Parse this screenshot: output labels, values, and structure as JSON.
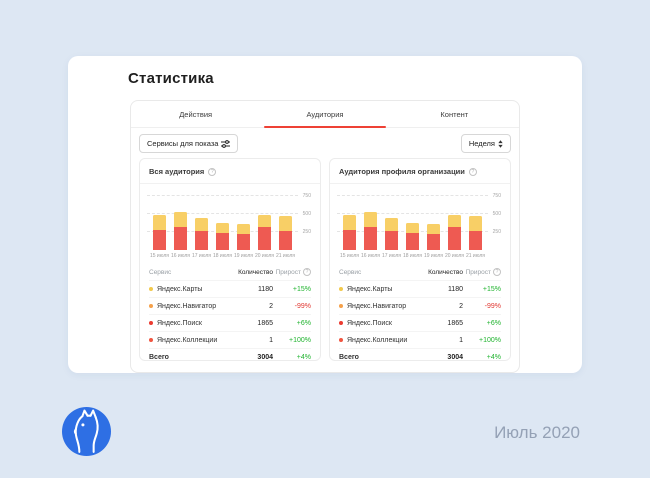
{
  "page": {
    "background": "#dde7f3",
    "footer": {
      "date": "Июль 2020"
    }
  },
  "header": {
    "title": "Статистика"
  },
  "tabs": [
    {
      "label": "Действия",
      "active": false
    },
    {
      "label": "Аудитория",
      "active": true
    },
    {
      "label": "Контент",
      "active": false
    }
  ],
  "toolbar": {
    "services_button": "Сервисы для показа",
    "period_value": "Неделя"
  },
  "icons": {
    "info": "?"
  },
  "colors": {
    "accent_red": "#ee4135",
    "bar_red": "#ee5a52",
    "bar_yellow": "#f8cf66",
    "positive_green": "#1fb32e",
    "negative_red": "#e13832",
    "logo_blue": "#2e6fe4"
  },
  "panels": [
    {
      "title": "Вся аудитория",
      "table": {
        "headers": [
          "Сервис",
          "Количество",
          "Прирост"
        ],
        "rows": [
          {
            "dot": "#f2c94c",
            "name": "Яндекс.Карты",
            "count": "1180",
            "growth": "+15%",
            "dir": "up"
          },
          {
            "dot": "#f5a14b",
            "name": "Яндекс.Навигатор",
            "count": "2",
            "growth": "-99%",
            "dir": "down"
          },
          {
            "dot": "#eb3b30",
            "name": "Яндекс.Поиск",
            "count": "1865",
            "growth": "+6%",
            "dir": "up"
          },
          {
            "dot": "#f05540",
            "name": "Яндекс.Коллекции",
            "count": "1",
            "growth": "+100%",
            "dir": "up"
          }
        ],
        "total": {
          "label": "Всего",
          "count": "3004",
          "growth": "+4%",
          "dir": "up"
        }
      }
    },
    {
      "title": "Аудитория профиля организации",
      "table": {
        "headers": [
          "Сервис",
          "Количество",
          "Прирост"
        ],
        "rows": [
          {
            "dot": "#f2c94c",
            "name": "Яндекс.Карты",
            "count": "1180",
            "growth": "+15%",
            "dir": "up"
          },
          {
            "dot": "#f5a14b",
            "name": "Яндекс.Навигатор",
            "count": "2",
            "growth": "-99%",
            "dir": "down"
          },
          {
            "dot": "#eb3b30",
            "name": "Яндекс.Поиск",
            "count": "1865",
            "growth": "+6%",
            "dir": "up"
          },
          {
            "dot": "#f05540",
            "name": "Яндекс.Коллекции",
            "count": "1",
            "growth": "+100%",
            "dir": "up"
          }
        ],
        "total": {
          "label": "Всего",
          "count": "3004",
          "growth": "+4%",
          "dir": "up"
        }
      }
    }
  ],
  "chart_data": [
    {
      "type": "bar",
      "stacked": true,
      "title": "Вся аудитория",
      "categories": [
        "15 июля",
        "16 июля",
        "17 июля",
        "18 июля",
        "19 июля",
        "20 июля",
        "21 июля"
      ],
      "series": [
        {
          "name": "red",
          "color": "#ee5a52",
          "values": [
            280,
            320,
            265,
            235,
            220,
            320,
            265
          ]
        },
        {
          "name": "yellow",
          "color": "#f8cf66",
          "values": [
            205,
            210,
            180,
            140,
            140,
            165,
            205
          ]
        }
      ],
      "ylim": [
        0,
        780
      ],
      "yticks": [
        250,
        500,
        750
      ],
      "grid": "dashed",
      "legend": "none"
    },
    {
      "type": "bar",
      "stacked": true,
      "title": "Аудитория профиля организации",
      "categories": [
        "15 июля",
        "16 июля",
        "17 июля",
        "18 июля",
        "19 июля",
        "20 июля",
        "21 июля"
      ],
      "series": [
        {
          "name": "red",
          "color": "#ee5a52",
          "values": [
            280,
            320,
            265,
            235,
            220,
            320,
            265
          ]
        },
        {
          "name": "yellow",
          "color": "#f8cf66",
          "values": [
            205,
            210,
            180,
            140,
            140,
            165,
            205
          ]
        }
      ],
      "ylim": [
        0,
        780
      ],
      "yticks": [
        250,
        500,
        750
      ],
      "grid": "dashed",
      "legend": "none"
    }
  ]
}
